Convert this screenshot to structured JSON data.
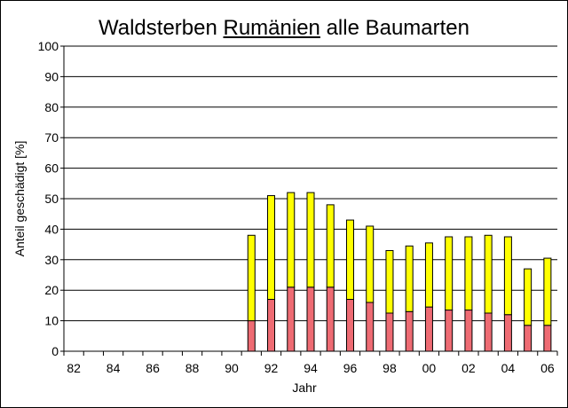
{
  "colors": {
    "lower": "#ee6b73",
    "upper": "#ffff00",
    "grid": "#000000",
    "plot_bg": "#ffffff"
  },
  "chart_data": {
    "type": "bar",
    "stacked": true,
    "title": {
      "part1": "Waldsterben ",
      "underlined": "Rumänien",
      "part2": " alle Baumarten"
    },
    "xlabel": "Jahr",
    "ylabel": "Anteil geschädigt [%]",
    "ylim": [
      0,
      100
    ],
    "yticks": [
      0,
      10,
      20,
      30,
      40,
      50,
      60,
      70,
      80,
      90,
      100
    ],
    "grid": true,
    "years": [
      "82",
      "83",
      "84",
      "85",
      "86",
      "87",
      "88",
      "89",
      "90",
      "91",
      "92",
      "93",
      "94",
      "95",
      "96",
      "97",
      "98",
      "99",
      "00",
      "01",
      "02",
      "03",
      "04",
      "05",
      "06"
    ],
    "xtick_labels": [
      "82",
      "84",
      "86",
      "88",
      "90",
      "92",
      "94",
      "96",
      "98",
      "00",
      "02",
      "04",
      "06"
    ],
    "series": [
      {
        "color": "#ee6b73",
        "values": [
          null,
          null,
          null,
          null,
          null,
          null,
          null,
          null,
          null,
          10,
          17,
          21,
          21,
          21,
          17,
          16,
          12.5,
          13,
          14.5,
          13.5,
          13.5,
          12.5,
          12,
          8.5,
          8.5
        ]
      },
      {
        "color": "#ffff00",
        "values": [
          null,
          null,
          null,
          null,
          null,
          null,
          null,
          null,
          null,
          28,
          34,
          31,
          31,
          27,
          26,
          25,
          20.5,
          21.5,
          21,
          24,
          24,
          25.5,
          25.5,
          18.5,
          22
        ]
      }
    ]
  }
}
